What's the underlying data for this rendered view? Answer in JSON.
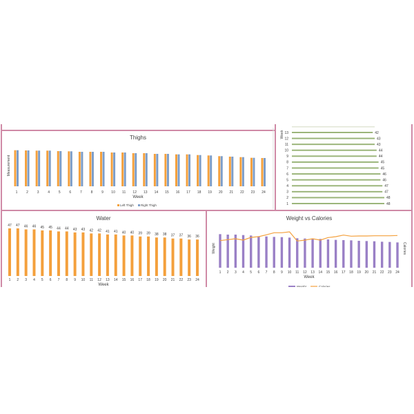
{
  "colors": {
    "panel_border": "#cf8aa6",
    "orange": "#f4a03c",
    "blue": "#7c9dc9",
    "green": "#9bb57a",
    "purple": "#9a80c6"
  },
  "chart_data": [
    {
      "type": "bar",
      "title": "Thighs",
      "xlabel": "Week",
      "ylabel": "Measurement",
      "legend": "bottom",
      "categories": [
        "1",
        "2",
        "3",
        "4",
        "5",
        "6",
        "7",
        "8",
        "9",
        "10",
        "11",
        "12",
        "13",
        "14",
        "15",
        "16",
        "17",
        "18",
        "19",
        "20",
        "21",
        "22",
        "23",
        "24"
      ],
      "series": [
        {
          "name": "Left Thigh",
          "color": "#f4a03c",
          "values": [
            52.3,
            52,
            51.7,
            51.7,
            51,
            50.7,
            50,
            50,
            50,
            49,
            49,
            48,
            48,
            47,
            47,
            46.3,
            46.3,
            45.3,
            44.7,
            43.7,
            43,
            42.3,
            41.3,
            41
          ]
        },
        {
          "name": "Right Thigh",
          "color": "#7c9dc9",
          "values": [
            52.3,
            52,
            51.7,
            51.7,
            51,
            50.7,
            50,
            50,
            50,
            49,
            49,
            48,
            48,
            47,
            47,
            46.3,
            46.3,
            45.3,
            44.7,
            43.7,
            43,
            42.3,
            41.3,
            41
          ]
        }
      ]
    },
    {
      "type": "bar",
      "orientation": "horizontal",
      "ylabel": "Week",
      "categories": [
        "1",
        "2",
        "3",
        "4",
        "5",
        "6",
        "7",
        "8",
        "9",
        "10",
        "11",
        "12",
        "13"
      ],
      "values": [
        48,
        48,
        47,
        47,
        46,
        46,
        45,
        45,
        44,
        44,
        43,
        43,
        42
      ],
      "color": "#9bb57a"
    },
    {
      "type": "bar",
      "title": "Water",
      "xlabel": "Week",
      "categories": [
        "1",
        "2",
        "3",
        "4",
        "5",
        "6",
        "7",
        "8",
        "9",
        "10",
        "11",
        "12",
        "13",
        "14",
        "15",
        "16",
        "17",
        "18",
        "19",
        "20",
        "21",
        "22",
        "23",
        "24"
      ],
      "values": [
        47,
        47,
        46,
        46,
        45,
        45,
        44,
        44,
        43,
        43,
        42,
        42,
        41,
        41,
        40,
        40,
        39,
        39,
        38,
        38,
        37,
        37,
        36,
        36
      ],
      "color": "#f4a03c"
    },
    {
      "type": "bar+line",
      "title": "Weight vs Calories",
      "xlabel": "Week",
      "ylabel": "Weight",
      "y2label": "Calories",
      "legend": "bottom",
      "categories": [
        "1",
        "2",
        "3",
        "4",
        "5",
        "6",
        "7",
        "8",
        "9",
        "10",
        "11",
        "12",
        "13",
        "14",
        "15",
        "16",
        "17",
        "18",
        "19",
        "20",
        "21",
        "22",
        "23",
        "24"
      ],
      "series": [
        {
          "name": "Weight",
          "type": "bar",
          "color": "#9a80c6",
          "values": [
            146,
            144,
            144,
            142,
            140,
            137,
            136,
            134,
            133,
            131,
            128,
            127,
            126,
            125,
            123,
            121,
            120,
            119,
            117,
            116,
            115,
            113,
            112,
            110
          ]
        },
        {
          "name": "Calories",
          "type": "line",
          "color": "#f4a03c",
          "values": [
            118,
            122,
            126,
            120,
            132,
            135,
            143,
            152,
            152,
            156,
            116,
            120,
            126,
            120,
            131,
            135,
            142,
            137,
            138,
            138,
            139,
            139,
            139,
            140
          ]
        }
      ]
    }
  ]
}
